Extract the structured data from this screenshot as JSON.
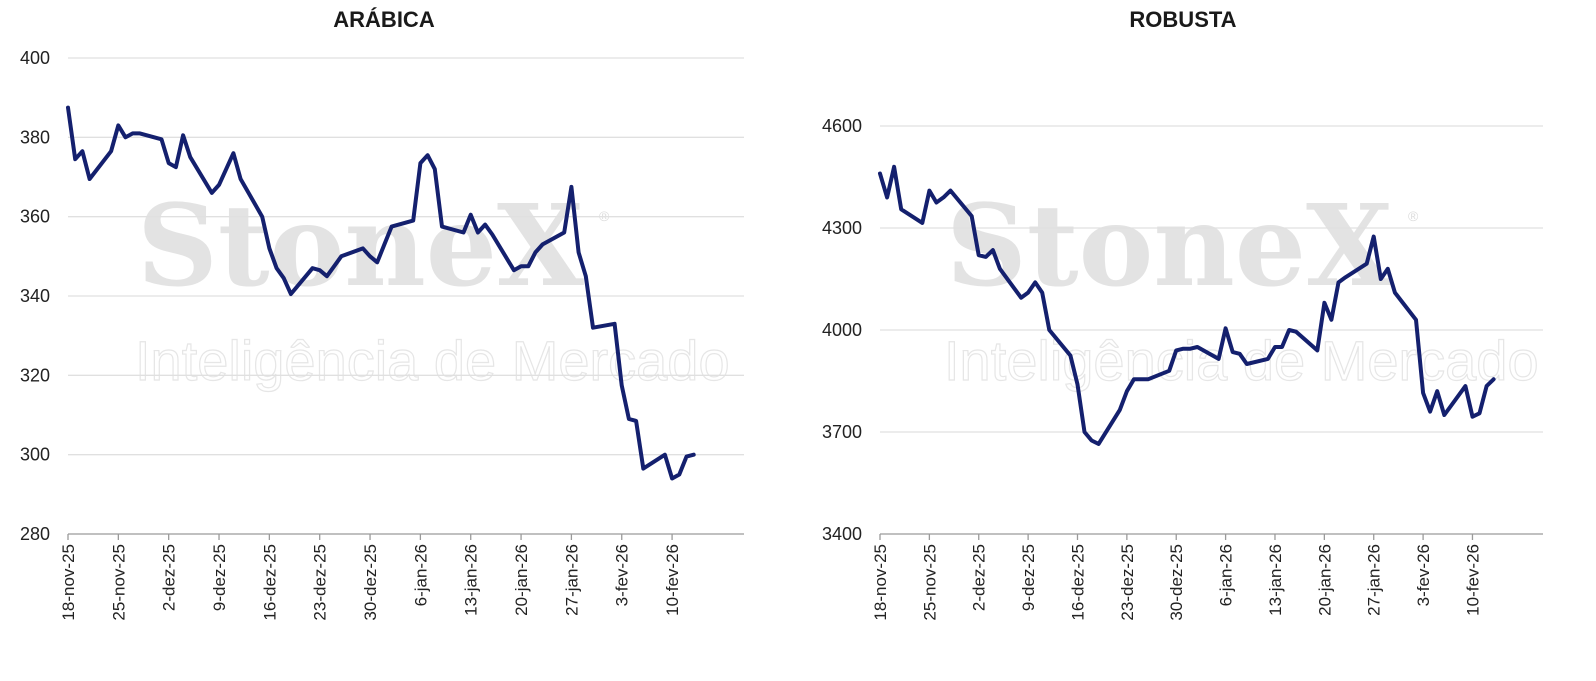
{
  "watermark": {
    "brand": "StoneX",
    "registered": "®",
    "tagline": "Inteligência de Mercado"
  },
  "colors": {
    "line": "#14206e",
    "grid": "#e0e0e0",
    "watermark": "#e3e3e3"
  },
  "chart_data": [
    {
      "type": "line",
      "title": "ARÁBICA",
      "xlabel": "",
      "ylabel": "",
      "ylim": [
        280,
        400
      ],
      "yticks": [
        280,
        300,
        320,
        340,
        360,
        380,
        400
      ],
      "xlim": [
        0,
        94
      ],
      "grid": true,
      "legend": "none",
      "tick_labels": [
        "18-nov-25",
        "25-nov-25",
        "2-dez-25",
        "9-dez-25",
        "16-dez-25",
        "23-dez-25",
        "30-dez-25",
        "6-jan-26",
        "13-jan-26",
        "20-jan-26",
        "27-jan-26",
        "3-fev-26",
        "10-fev-26"
      ],
      "tick_days": [
        0,
        7,
        14,
        21,
        28,
        35,
        42,
        49,
        56,
        63,
        70,
        77,
        84
      ],
      "series": [
        {
          "days": [
            0,
            1,
            2,
            3,
            6,
            7,
            8,
            9,
            10,
            13,
            14,
            15,
            16,
            17,
            20,
            21,
            22,
            23,
            24,
            27,
            28,
            29,
            30,
            31,
            34,
            35,
            36,
            37,
            38,
            41,
            42,
            43,
            44,
            45,
            48,
            49,
            50,
            51,
            52,
            55,
            56,
            57,
            58,
            59,
            62,
            63,
            64,
            65,
            66,
            69,
            70,
            71,
            72,
            73,
            76,
            77,
            78,
            79,
            80,
            83,
            84,
            85,
            86,
            87
          ],
          "values": [
            387.5,
            374.5,
            376.5,
            369.5,
            376.5,
            383,
            380,
            381,
            381,
            379.5,
            373.5,
            372.5,
            380.5,
            375,
            366,
            368,
            372,
            376,
            369.5,
            360,
            352,
            347,
            344.5,
            340.5,
            347,
            346.5,
            345,
            347.5,
            350,
            352,
            350,
            348.5,
            353,
            357.5,
            359,
            373.5,
            375.5,
            372,
            357.5,
            356,
            360.5,
            356,
            358,
            355.5,
            346.5,
            347.5,
            347.5,
            351,
            353,
            356,
            367.5,
            351,
            345,
            332,
            333,
            317.5,
            309,
            308.5,
            296.5,
            300,
            294,
            295,
            299.5,
            300
          ]
        }
      ]
    },
    {
      "type": "line",
      "title": "ROBUSTA",
      "xlabel": "",
      "ylabel": "",
      "ylim": [
        3400,
        4600
      ],
      "yticks": [
        3400,
        3700,
        4000,
        4300,
        4600
      ],
      "xlim": [
        0,
        94
      ],
      "grid": true,
      "legend": "none",
      "tick_labels": [
        "18-nov-25",
        "25-nov-25",
        "2-dez-25",
        "9-dez-25",
        "16-dez-25",
        "23-dez-25",
        "30-dez-25",
        "6-jan-26",
        "13-jan-26",
        "20-jan-26",
        "27-jan-26",
        "3-fev-26",
        "10-fev-26"
      ],
      "tick_days": [
        0,
        7,
        14,
        21,
        28,
        35,
        42,
        49,
        56,
        63,
        70,
        77,
        84
      ],
      "series": [
        {
          "days": [
            0,
            1,
            2,
            3,
            6,
            7,
            8,
            9,
            10,
            13,
            14,
            15,
            16,
            17,
            20,
            21,
            22,
            23,
            24,
            27,
            28,
            29,
            30,
            31,
            34,
            35,
            36,
            37,
            38,
            41,
            42,
            43,
            44,
            45,
            48,
            49,
            50,
            51,
            52,
            55,
            56,
            57,
            58,
            59,
            62,
            63,
            64,
            65,
            66,
            69,
            70,
            71,
            72,
            73,
            76,
            77,
            78,
            79,
            80,
            83,
            84,
            85,
            86,
            87
          ],
          "values": [
            4460,
            4390,
            4480,
            4355,
            4315,
            4410,
            4375,
            4390,
            4410,
            4335,
            4220,
            4215,
            4235,
            4180,
            4095,
            4110,
            4140,
            4110,
            4000,
            3925,
            3840,
            3700,
            3675,
            3665,
            3765,
            3820,
            3855,
            3855,
            3855,
            3880,
            3940,
            3945,
            3945,
            3950,
            3915,
            4005,
            3935,
            3930,
            3900,
            3915,
            3950,
            3950,
            4000,
            3995,
            3940,
            4080,
            4030,
            4140,
            4155,
            4195,
            4275,
            4150,
            4180,
            4110,
            4030,
            3815,
            3760,
            3820,
            3750,
            3835,
            3745,
            3755,
            3835,
            3855
          ]
        }
      ]
    }
  ]
}
